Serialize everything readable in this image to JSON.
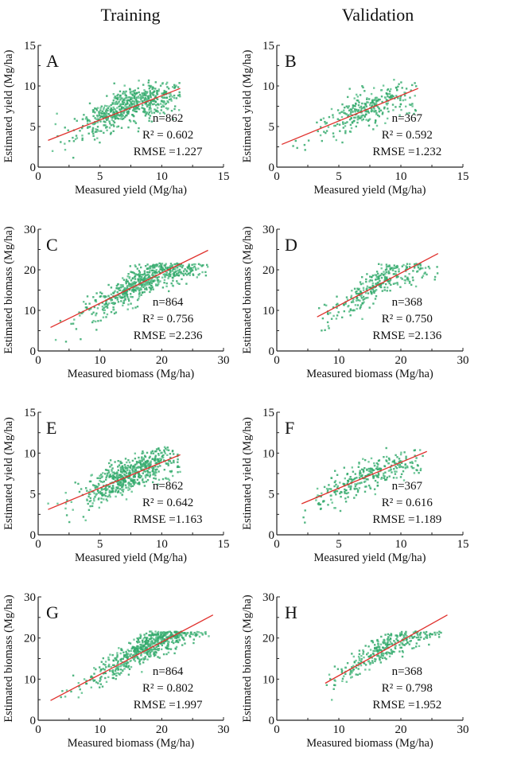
{
  "column_titles": {
    "left": "Training",
    "right": "Validation"
  },
  "colors": {
    "points": "#34a96c",
    "fit_line": "#e0302c",
    "axis": "#222222"
  },
  "chart_data": [
    {
      "panel": "A",
      "column": "Training",
      "type": "scatter",
      "xlabel": "Measured yield (Mg/ha)",
      "ylabel": "Estimated yield (Mg/ha)",
      "xlim": [
        0,
        15
      ],
      "ylim": [
        0,
        15
      ],
      "xticks": [
        0,
        5,
        10,
        15
      ],
      "yticks": [
        0,
        5,
        10,
        15
      ],
      "minor_step": 2.5,
      "stats": {
        "n": "n=862",
        "r2": "R² = 0.602",
        "rmse": "RMSE =1.227"
      },
      "fit_line": {
        "x": [
          0.8,
          11.5
        ],
        "y": [
          3.3,
          9.7
        ]
      },
      "cloud": {
        "n_draw": 600,
        "x_range": [
          0.8,
          11.5
        ],
        "x_center": 7.5,
        "x_spread": 2.2,
        "curve": [
          [
            1,
            3.2
          ],
          [
            4,
            5.2
          ],
          [
            7,
            7.5
          ],
          [
            10,
            8.7
          ],
          [
            11.5,
            8.6
          ]
        ],
        "noise": 1.1,
        "seed": 11
      }
    },
    {
      "panel": "B",
      "column": "Validation",
      "type": "scatter",
      "xlabel": "Measured yield (Mg/ha)",
      "ylabel": "Estimated yield (Mg/ha)",
      "xlim": [
        0,
        15
      ],
      "ylim": [
        0,
        15
      ],
      "xticks": [
        0,
        5,
        10,
        15
      ],
      "yticks": [
        0,
        5,
        10,
        15
      ],
      "minor_step": 2.5,
      "stats": {
        "n": "n=367",
        "r2": "R² = 0.592",
        "rmse": "RMSE =1.232"
      },
      "fit_line": {
        "x": [
          0.4,
          11.4
        ],
        "y": [
          2.8,
          9.7
        ]
      },
      "cloud": {
        "n_draw": 300,
        "x_range": [
          0.4,
          11.3
        ],
        "x_center": 7.3,
        "x_spread": 2.1,
        "curve": [
          [
            1,
            2.5
          ],
          [
            4,
            4.8
          ],
          [
            7,
            7.3
          ],
          [
            10,
            8.6
          ],
          [
            11.3,
            8.3
          ]
        ],
        "noise": 1.1,
        "seed": 22
      }
    },
    {
      "panel": "C",
      "column": "Training",
      "type": "scatter",
      "xlabel": "Measured biomass (Mg/ha)",
      "ylabel": "Estimated biomass (Mg/ha)",
      "xlim": [
        0,
        30
      ],
      "ylim": [
        0,
        30
      ],
      "xticks": [
        0,
        10,
        20,
        30
      ],
      "yticks": [
        0,
        10,
        20,
        30
      ],
      "minor_step": 5,
      "stats": {
        "n": "n=864",
        "r2": "R² = 0.756",
        "rmse": "RMSE =2.236"
      },
      "fit_line": {
        "x": [
          2,
          27.5
        ],
        "y": [
          5.8,
          24.8
        ]
      },
      "cloud": {
        "n_draw": 600,
        "x_range": [
          2.5,
          27.5
        ],
        "x_center": 17,
        "x_spread": 4.5,
        "curve": [
          [
            3,
            4
          ],
          [
            8,
            9.5
          ],
          [
            12,
            12.5
          ],
          [
            16,
            16.5
          ],
          [
            20,
            19.5
          ],
          [
            24,
            20.5
          ],
          [
            27.5,
            20.8
          ]
        ],
        "noise": 1.9,
        "seed": 33
      }
    },
    {
      "panel": "D",
      "column": "Validation",
      "type": "scatter",
      "xlabel": "Measured biomass (Mg/ha)",
      "ylabel": "Estimated biomass (Mg/ha)",
      "xlim": [
        0,
        30
      ],
      "ylim": [
        0,
        30
      ],
      "xticks": [
        0,
        10,
        20,
        30
      ],
      "yticks": [
        0,
        10,
        20,
        30
      ],
      "minor_step": 5,
      "stats": {
        "n": "n=368",
        "r2": "R² = 0.750",
        "rmse": "RMSE =2.136"
      },
      "fit_line": {
        "x": [
          6.5,
          26
        ],
        "y": [
          8.4,
          24.0
        ]
      },
      "cloud": {
        "n_draw": 300,
        "x_range": [
          6.5,
          26
        ],
        "x_center": 17,
        "x_spread": 4.5,
        "curve": [
          [
            7,
            8
          ],
          [
            10,
            10
          ],
          [
            13,
            13
          ],
          [
            16,
            16.5
          ],
          [
            19,
            19.5
          ],
          [
            23,
            20.3
          ],
          [
            26,
            20
          ]
        ],
        "noise": 1.8,
        "seed": 44
      }
    },
    {
      "panel": "E",
      "column": "Training",
      "type": "scatter",
      "xlabel": "Measured yield (Mg/ha)",
      "ylabel": "Estimated yield (Mg/ha)",
      "xlim": [
        0,
        15
      ],
      "ylim": [
        0,
        15
      ],
      "xticks": [
        0,
        5,
        10,
        15
      ],
      "yticks": [
        0,
        5,
        10,
        15
      ],
      "minor_step": 2.5,
      "stats": {
        "n": "n=862",
        "r2": "R² = 0.642",
        "rmse": "RMSE =1.163"
      },
      "fit_line": {
        "x": [
          0.8,
          11.5
        ],
        "y": [
          3.1,
          9.8
        ]
      },
      "cloud": {
        "n_draw": 600,
        "x_range": [
          0.8,
          11.5
        ],
        "x_center": 7.5,
        "x_spread": 2.2,
        "curve": [
          [
            1,
            3.3
          ],
          [
            4,
            4.8
          ],
          [
            7,
            7.2
          ],
          [
            10,
            8.8
          ],
          [
            11.5,
            8.9
          ]
        ],
        "noise": 1.0,
        "seed": 55
      }
    },
    {
      "panel": "F",
      "column": "Validation",
      "type": "scatter",
      "xlabel": "Measured yield (Mg/ha)",
      "ylabel": "Estimated yield (Mg/ha)",
      "xlim": [
        0,
        15
      ],
      "ylim": [
        0,
        15
      ],
      "xticks": [
        0,
        5,
        10,
        15
      ],
      "yticks": [
        0,
        5,
        10,
        15
      ],
      "minor_step": 2.5,
      "stats": {
        "n": "n=367",
        "r2": "R² = 0.616",
        "rmse": "RMSE =1.189"
      },
      "fit_line": {
        "x": [
          2,
          12.1
        ],
        "y": [
          3.8,
          10.2
        ]
      },
      "cloud": {
        "n_draw": 300,
        "x_range": [
          2,
          12
        ],
        "x_center": 7.3,
        "x_spread": 2.2,
        "curve": [
          [
            2,
            3.3
          ],
          [
            4,
            4.8
          ],
          [
            7,
            7.2
          ],
          [
            10,
            8.6
          ],
          [
            12,
            8.9
          ]
        ],
        "noise": 1.0,
        "seed": 66
      }
    },
    {
      "panel": "G",
      "column": "Training",
      "type": "scatter",
      "xlabel": "Measured biomass (Mg/ha)",
      "ylabel": "Estimated biomass (Mg/ha)",
      "xlim": [
        0,
        30
      ],
      "ylim": [
        0,
        30
      ],
      "xticks": [
        0,
        10,
        20,
        30
      ],
      "yticks": [
        0,
        10,
        20,
        30
      ],
      "minor_step": 5,
      "stats": {
        "n": "n=864",
        "r2": "R² = 0.802",
        "rmse": "RMSE =1.997"
      },
      "fit_line": {
        "x": [
          2,
          28.3
        ],
        "y": [
          4.8,
          25.6
        ]
      },
      "cloud": {
        "n_draw": 600,
        "x_range": [
          2,
          28.2
        ],
        "x_center": 17,
        "x_spread": 4.5,
        "curve": [
          [
            2,
            6.5
          ],
          [
            8,
            9.5
          ],
          [
            12,
            12.8
          ],
          [
            16,
            16.5
          ],
          [
            20,
            19.8
          ],
          [
            24,
            21.5
          ],
          [
            28,
            22.3
          ]
        ],
        "noise": 1.7,
        "seed": 77
      }
    },
    {
      "panel": "H",
      "column": "Validation",
      "type": "scatter",
      "xlabel": "Measured biomass (Mg/ha)",
      "ylabel": "Estimated biomass (Mg/ha)",
      "xlim": [
        0,
        30
      ],
      "ylim": [
        0,
        30
      ],
      "xticks": [
        0,
        10,
        20,
        30
      ],
      "yticks": [
        0,
        10,
        20,
        30
      ],
      "minor_step": 5,
      "stats": {
        "n": "n=368",
        "r2": "R² = 0.798",
        "rmse": "RMSE =1.952"
      },
      "fit_line": {
        "x": [
          7.8,
          27.5
        ],
        "y": [
          9.0,
          25.6
        ]
      },
      "cloud": {
        "n_draw": 300,
        "x_range": [
          8,
          27.5
        ],
        "x_center": 17.5,
        "x_spread": 4.2,
        "curve": [
          [
            8,
            9
          ],
          [
            11,
            11.5
          ],
          [
            14,
            14.5
          ],
          [
            17,
            17.5
          ],
          [
            20,
            19.5
          ],
          [
            24,
            21.5
          ],
          [
            27.5,
            22.5
          ]
        ],
        "noise": 1.6,
        "seed": 88
      }
    }
  ]
}
